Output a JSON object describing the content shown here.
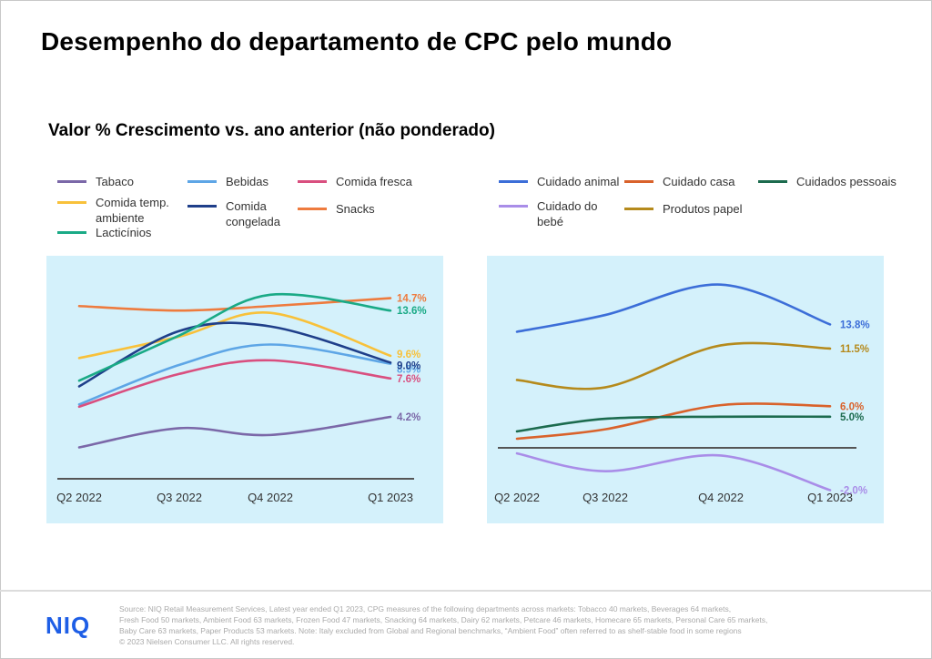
{
  "title": "Desempenho do departamento de CPC pelo mundo",
  "subtitle": "Valor % Crescimento vs. ano anterior (não ponderado)",
  "logo": "NIQ",
  "footnote": [
    "Source: NIQ Retail Measurement Services, Latest year ended Q1 2023, CPG measures of the following departments across markets: Tobacco 40 markets, Beverages 64 markets,",
    "Fresh Food 50 markets, Ambient Food 63 markets, Frozen Food 47 markets, Snacking 64 markets, Dairy 62 markets, Petcare 46 markets, Homecare 65 markets, Personal Care 65 markets,",
    "Baby Care 63 markets, Paper Products 53 markets. Note: Italy excluded from Global and Regional benchmarks, “Ambient Food” often referred to as shelf-stable food in some regions",
    "© 2023 Nielsen Consumer LLC. All rights reserved."
  ],
  "legend_left": [
    {
      "label": "Tabaco",
      "color": "#7b68a8"
    },
    {
      "label": "Bebidas",
      "color": "#5ea6e6"
    },
    {
      "label": "Comida fresca",
      "color": "#d94f7f"
    },
    {
      "label": "Comida temp.\nambiente",
      "color": "#f8c13a"
    },
    {
      "label": "Comida\ncongelada",
      "color": "#1f3f8a"
    },
    {
      "label": "Snacks",
      "color": "#ee7b3e"
    },
    {
      "label": "Lacticínios",
      "color": "#1aaa86"
    }
  ],
  "legend_right": [
    {
      "label": "Cuidado animal",
      "color": "#3c6ed8"
    },
    {
      "label": "Cuidado casa",
      "color": "#d9622b"
    },
    {
      "label": "Cuidados pessoais",
      "color": "#1c6b4e"
    },
    {
      "label": "Cuidado do\nbebé",
      "color": "#a98de8"
    },
    {
      "label": "Produtos papel",
      "color": "#b58a1c"
    }
  ],
  "chart_data": [
    {
      "type": "line",
      "background": "#d4f1fb",
      "x": [
        "Q2 2022",
        "Q3 2022",
        "Q4 2022",
        "Q1 2023"
      ],
      "ylim": [
        -2,
        17
      ],
      "series": [
        {
          "name": "Tabaco",
          "color": "#7b68a8",
          "values": [
            1.5,
            3.2,
            2.6,
            4.2
          ],
          "end_label": "4.2%"
        },
        {
          "name": "Bebidas",
          "color": "#5ea6e6",
          "values": [
            5.3,
            8.8,
            10.6,
            8.9
          ],
          "end_label": "8.9%"
        },
        {
          "name": "Comida fresca",
          "color": "#d94f7f",
          "values": [
            5.1,
            8.0,
            9.2,
            7.6
          ],
          "end_label": "7.6%"
        },
        {
          "name": "Comida temp. ambiente",
          "color": "#f8c13a",
          "values": [
            9.4,
            11.3,
            13.4,
            9.6
          ],
          "end_label": "9.6%"
        },
        {
          "name": "Comida congelada",
          "color": "#1f3f8a",
          "values": [
            6.9,
            11.8,
            12.2,
            9.0
          ],
          "end_label": "9.0%"
        },
        {
          "name": "Snacks",
          "color": "#ee7b3e",
          "values": [
            14.0,
            13.6,
            14.0,
            14.7
          ],
          "end_label": "14.7%"
        },
        {
          "name": "Lacticínios",
          "color": "#1aaa86",
          "values": [
            7.4,
            11.4,
            15.0,
            13.6
          ],
          "end_label": "13.6%"
        }
      ]
    },
    {
      "type": "line",
      "background": "#d4f1fb",
      "x": [
        "Q2 2022",
        "Q3 2022",
        "Q4 2022",
        "Q1 2023"
      ],
      "ylim": [
        -5,
        20
      ],
      "series": [
        {
          "name": "Cuidado animal",
          "color": "#3c6ed8",
          "values": [
            13.1,
            14.7,
            17.6,
            13.8
          ],
          "end_label": "13.8%"
        },
        {
          "name": "Cuidado casa",
          "color": "#d9622b",
          "values": [
            2.9,
            3.8,
            6.1,
            6.0
          ],
          "end_label": "6.0%"
        },
        {
          "name": "Cuidados pessoais",
          "color": "#1c6b4e",
          "values": [
            3.6,
            4.8,
            5.0,
            5.0
          ],
          "end_label": "5.0%"
        },
        {
          "name": "Cuidado do bebé",
          "color": "#a98de8",
          "values": [
            1.5,
            -0.2,
            1.3,
            -2.0
          ],
          "end_label": "-2.0%"
        },
        {
          "name": "Produtos papel",
          "color": "#b58a1c",
          "values": [
            8.5,
            7.8,
            11.8,
            11.5
          ],
          "end_label": "11.5%"
        }
      ]
    }
  ]
}
